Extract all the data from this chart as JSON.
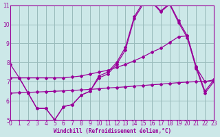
{
  "xlabel": "Windchill (Refroidissement éolien,°C)",
  "xlim": [
    0,
    23
  ],
  "ylim": [
    5,
    11
  ],
  "yticks": [
    5,
    6,
    7,
    8,
    9,
    10,
    11
  ],
  "xticks": [
    0,
    1,
    2,
    3,
    4,
    5,
    6,
    7,
    8,
    9,
    10,
    11,
    12,
    13,
    14,
    15,
    16,
    17,
    18,
    19,
    20,
    21,
    22,
    23
  ],
  "bg_color": "#cce8e8",
  "line_color": "#990099",
  "grid_color": "#99bbbb",
  "lines": [
    {
      "x": [
        0,
        1,
        2,
        3,
        4,
        5,
        6,
        7,
        8,
        9,
        10,
        11,
        12,
        13,
        14,
        15,
        16,
        17,
        18,
        19,
        20,
        21,
        22,
        23
      ],
      "y": [
        7.9,
        7.2,
        6.4,
        5.6,
        5.6,
        5.0,
        5.7,
        5.8,
        6.3,
        6.5,
        7.3,
        7.5,
        8.0,
        8.8,
        10.4,
        11.15,
        11.2,
        10.7,
        11.1,
        10.2,
        9.4,
        7.8,
        6.5,
        7.1
      ]
    },
    {
      "x": [
        1,
        2,
        3,
        4,
        5,
        6,
        7,
        8,
        9,
        10,
        11,
        12,
        13,
        14,
        15,
        16,
        17,
        18,
        19,
        20,
        21,
        22,
        23
      ],
      "y": [
        7.2,
        6.4,
        5.6,
        5.6,
        5.0,
        5.7,
        5.8,
        6.3,
        6.5,
        7.2,
        7.4,
        7.9,
        8.65,
        10.3,
        11.05,
        11.15,
        10.65,
        11.05,
        10.1,
        9.3,
        7.7,
        6.4,
        7.0
      ]
    },
    {
      "x": [
        0,
        1,
        2,
        3,
        4,
        5,
        6,
        7,
        8,
        9,
        10,
        11,
        12,
        13,
        14,
        15,
        16,
        17,
        18,
        19,
        20,
        21,
        22,
        23
      ],
      "y": [
        7.2,
        7.2,
        7.2,
        7.2,
        7.2,
        7.2,
        7.2,
        7.25,
        7.3,
        7.4,
        7.5,
        7.6,
        7.75,
        7.9,
        8.1,
        8.3,
        8.55,
        8.75,
        9.05,
        9.35,
        9.4,
        7.75,
        7.0,
        7.1
      ]
    },
    {
      "x": [
        0,
        1,
        2,
        3,
        4,
        5,
        6,
        7,
        8,
        9,
        10,
        11,
        12,
        13,
        14,
        15,
        16,
        17,
        18,
        19,
        20,
        21,
        22,
        23
      ],
      "y": [
        6.4,
        6.42,
        6.44,
        6.46,
        6.48,
        6.5,
        6.52,
        6.54,
        6.57,
        6.6,
        6.63,
        6.67,
        6.7,
        6.73,
        6.77,
        6.8,
        6.84,
        6.87,
        6.91,
        6.95,
        6.98,
        7.0,
        7.02,
        7.05
      ]
    }
  ]
}
